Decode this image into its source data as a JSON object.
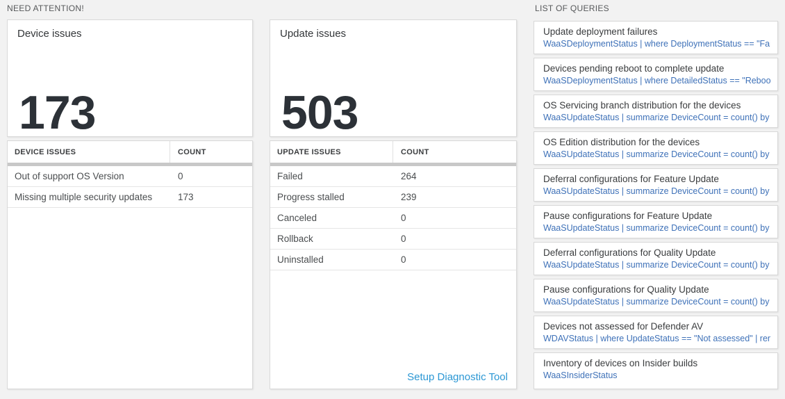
{
  "colors": {
    "page_background": "#f2f2f2",
    "card_border": "#d9d9d9",
    "metric_text": "#2c3137",
    "query_link_blue": "#3e71b8",
    "action_link_blue": "#2b97d4"
  },
  "sections": {
    "need_attention_label": "NEED ATTENTION!",
    "queries_label": "LIST OF QUERIES"
  },
  "tiles": {
    "device": {
      "title": "Device issues",
      "count": "173"
    },
    "update": {
      "title": "Update issues",
      "count": "503"
    }
  },
  "device_table": {
    "headers": {
      "name": "DEVICE ISSUES",
      "count": "COUNT"
    },
    "rows": [
      {
        "label": "Out of support OS Version",
        "count": "0"
      },
      {
        "label": "Missing multiple security updates",
        "count": "173"
      }
    ]
  },
  "update_table": {
    "headers": {
      "name": "UPDATE ISSUES",
      "count": "COUNT"
    },
    "rows": [
      {
        "label": "Failed",
        "count": "264"
      },
      {
        "label": "Progress stalled",
        "count": "239"
      },
      {
        "label": "Canceled",
        "count": "0"
      },
      {
        "label": "Rollback",
        "count": "0"
      },
      {
        "label": "Uninstalled",
        "count": "0"
      }
    ],
    "footer_link": "Setup Diagnostic Tool"
  },
  "queries": {
    "items": [
      {
        "title": "Update deployment failures",
        "query": "WaaSDeploymentStatus | where DeploymentStatus == \"Failed\" |..."
      },
      {
        "title": "Devices pending reboot to complete update",
        "query": "WaaSDeploymentStatus | where DetailedStatus == \"Reboot pend..."
      },
      {
        "title": "OS Servicing branch distribution for the devices",
        "query": "WaaSUpdateStatus | summarize DeviceCount = count() by OSSer..."
      },
      {
        "title": "OS Edition distribution for the devices",
        "query": "WaaSUpdateStatus | summarize DeviceCount = count() by OSEdit..."
      },
      {
        "title": "Deferral configurations for Feature Update",
        "query": "WaaSUpdateStatus | summarize DeviceCount = count() by Featur..."
      },
      {
        "title": "Pause configurations for Feature Update",
        "query": "WaaSUpdateStatus | summarize DeviceCount = count() by Featur..."
      },
      {
        "title": "Deferral configurations for Quality Update",
        "query": "WaaSUpdateStatus | summarize DeviceCount = count() by Qualit..."
      },
      {
        "title": "Pause configurations for Quality Update",
        "query": "WaaSUpdateStatus | summarize DeviceCount = count() by Qualit..."
      },
      {
        "title": "Devices not assessed for Defender AV",
        "query": "WDAVStatus | where UpdateStatus == \"Not assessed\" | render ta..."
      },
      {
        "title": "Inventory of devices on Insider builds",
        "query": "WaaSInsiderStatus"
      }
    ]
  }
}
